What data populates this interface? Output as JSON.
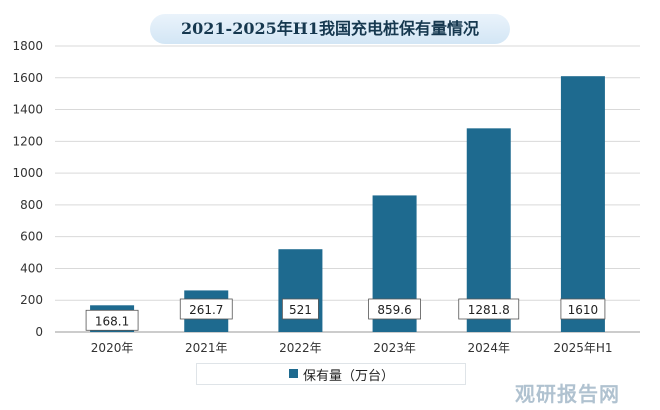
{
  "chart_data": {
    "type": "bar",
    "title": "2021-2025年H1我国充电桩保有量情况",
    "categories": [
      "2020年",
      "2021年",
      "2022年",
      "2023年",
      "2024年",
      "2025年H1"
    ],
    "series": [
      {
        "name": "保有量（万台）",
        "values": [
          168.1,
          261.7,
          521,
          859.6,
          1281.8,
          1610
        ]
      }
    ],
    "data_labels": [
      "168.1",
      "261.7",
      "521",
      "859.6",
      "1281.8",
      "1610"
    ],
    "ylim": [
      0,
      1800
    ],
    "yticks": [
      0,
      200,
      400,
      600,
      800,
      1000,
      1200,
      1400,
      1600,
      1800
    ],
    "grid": true,
    "legend_position": "bottom",
    "colors": {
      "bar": "#1e6a8f",
      "grid": "#d9d9d9",
      "title_bg": "#d8e8f5"
    }
  },
  "watermark": "观研报告网"
}
